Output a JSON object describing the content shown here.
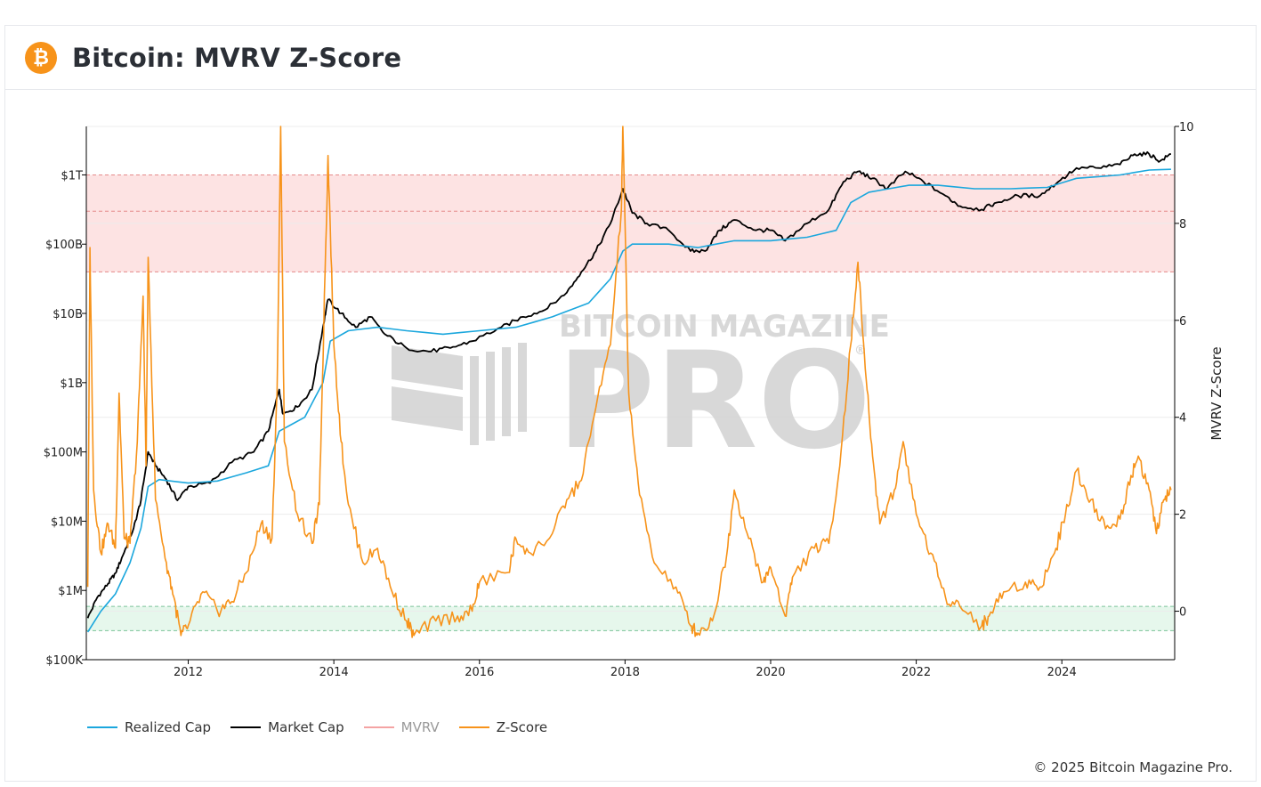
{
  "header": {
    "title": "Bitcoin: MVRV Z-Score",
    "logo_glyph": "₿",
    "logo_color": "#f7931a"
  },
  "watermark": {
    "line1": "BITCOIN MAGAZINE",
    "line2": "PRO",
    "registered": "®"
  },
  "footer": {
    "copyright": "© 2025 Bitcoin Magazine Pro."
  },
  "legend": [
    {
      "label": "Realized Cap",
      "color": "#1ba7dd",
      "active": true
    },
    {
      "label": "Market Cap",
      "color": "#000000",
      "active": true
    },
    {
      "label": "MVRV",
      "color": "#f4a3a3",
      "active": false
    },
    {
      "label": "Z-Score",
      "color": "#f7931a",
      "active": true
    }
  ],
  "chart_data": {
    "type": "line",
    "x_ticks": [
      "2012",
      "2014",
      "2016",
      "2018",
      "2020",
      "2022",
      "2024"
    ],
    "x_range": [
      2010.6,
      2025.55
    ],
    "left_axis": {
      "scale": "log",
      "ticks": [
        "$100K",
        "$1M",
        "$10M",
        "$100M",
        "$1B",
        "$10B",
        "$100B",
        "$1T"
      ],
      "range_log10": [
        5,
        12.7
      ]
    },
    "right_axis": {
      "label": "MVRV Z-Score",
      "ticks": [
        "0",
        "2",
        "4",
        "6",
        "8",
        "10"
      ],
      "range": [
        -1,
        10
      ]
    },
    "zones": [
      {
        "name": "overvalued",
        "from": 7,
        "to": 9,
        "color": "#fde3e3",
        "mid_line": 8.25
      },
      {
        "name": "undervalued",
        "from": -0.4,
        "to": 0.1,
        "color": "#e6f7ec"
      }
    ],
    "series": [
      {
        "name": "Market Cap",
        "color": "#000000",
        "axis": "left",
        "points": [
          [
            2010.62,
            5.6
          ],
          [
            2010.75,
            5.9
          ],
          [
            2010.9,
            6.1
          ],
          [
            2011.0,
            6.25
          ],
          [
            2011.1,
            6.5
          ],
          [
            2011.25,
            6.9
          ],
          [
            2011.35,
            7.3
          ],
          [
            2011.45,
            8.0
          ],
          [
            2011.55,
            7.8
          ],
          [
            2011.7,
            7.6
          ],
          [
            2011.85,
            7.3
          ],
          [
            2012.0,
            7.5
          ],
          [
            2012.3,
            7.55
          ],
          [
            2012.6,
            7.85
          ],
          [
            2012.9,
            8.0
          ],
          [
            2013.1,
            8.3
          ],
          [
            2013.25,
            8.9
          ],
          [
            2013.3,
            8.55
          ],
          [
            2013.5,
            8.65
          ],
          [
            2013.7,
            8.9
          ],
          [
            2013.85,
            9.8
          ],
          [
            2013.92,
            10.2
          ],
          [
            2014.1,
            10.0
          ],
          [
            2014.3,
            9.8
          ],
          [
            2014.5,
            9.95
          ],
          [
            2014.7,
            9.7
          ],
          [
            2015.0,
            9.5
          ],
          [
            2015.3,
            9.45
          ],
          [
            2015.6,
            9.5
          ],
          [
            2015.9,
            9.6
          ],
          [
            2016.3,
            9.8
          ],
          [
            2016.6,
            9.95
          ],
          [
            2016.9,
            10.05
          ],
          [
            2017.2,
            10.3
          ],
          [
            2017.4,
            10.6
          ],
          [
            2017.6,
            10.9
          ],
          [
            2017.8,
            11.3
          ],
          [
            2017.97,
            11.8
          ],
          [
            2018.1,
            11.45
          ],
          [
            2018.3,
            11.3
          ],
          [
            2018.6,
            11.2
          ],
          [
            2018.9,
            10.9
          ],
          [
            2019.1,
            10.9
          ],
          [
            2019.3,
            11.2
          ],
          [
            2019.5,
            11.35
          ],
          [
            2019.8,
            11.2
          ],
          [
            2020.0,
            11.2
          ],
          [
            2020.2,
            11.05
          ],
          [
            2020.5,
            11.3
          ],
          [
            2020.8,
            11.5
          ],
          [
            2021.0,
            11.9
          ],
          [
            2021.2,
            12.05
          ],
          [
            2021.4,
            11.95
          ],
          [
            2021.6,
            11.8
          ],
          [
            2021.85,
            12.05
          ],
          [
            2022.1,
            11.9
          ],
          [
            2022.4,
            11.7
          ],
          [
            2022.6,
            11.55
          ],
          [
            2022.9,
            11.5
          ],
          [
            2023.1,
            11.6
          ],
          [
            2023.4,
            11.7
          ],
          [
            2023.7,
            11.7
          ],
          [
            2023.95,
            11.9
          ],
          [
            2024.2,
            12.1
          ],
          [
            2024.5,
            12.1
          ],
          [
            2024.8,
            12.15
          ],
          [
            2025.0,
            12.3
          ],
          [
            2025.2,
            12.3
          ],
          [
            2025.35,
            12.2
          ],
          [
            2025.5,
            12.3
          ]
        ]
      },
      {
        "name": "Realized Cap",
        "color": "#1ba7dd",
        "axis": "left",
        "points": [
          [
            2010.62,
            5.4
          ],
          [
            2010.8,
            5.7
          ],
          [
            2011.0,
            5.95
          ],
          [
            2011.2,
            6.4
          ],
          [
            2011.35,
            6.9
          ],
          [
            2011.45,
            7.5
          ],
          [
            2011.6,
            7.6
          ],
          [
            2012.0,
            7.55
          ],
          [
            2012.4,
            7.58
          ],
          [
            2012.8,
            7.7
          ],
          [
            2013.1,
            7.8
          ],
          [
            2013.25,
            8.3
          ],
          [
            2013.6,
            8.5
          ],
          [
            2013.85,
            9.0
          ],
          [
            2013.95,
            9.6
          ],
          [
            2014.2,
            9.75
          ],
          [
            2014.6,
            9.8
          ],
          [
            2015.0,
            9.75
          ],
          [
            2015.5,
            9.7
          ],
          [
            2016.0,
            9.75
          ],
          [
            2016.5,
            9.8
          ],
          [
            2017.0,
            9.95
          ],
          [
            2017.5,
            10.15
          ],
          [
            2017.8,
            10.5
          ],
          [
            2017.97,
            10.9
          ],
          [
            2018.1,
            11.0
          ],
          [
            2018.6,
            11.0
          ],
          [
            2019.0,
            10.95
          ],
          [
            2019.5,
            11.05
          ],
          [
            2020.0,
            11.05
          ],
          [
            2020.5,
            11.1
          ],
          [
            2020.9,
            11.2
          ],
          [
            2021.1,
            11.6
          ],
          [
            2021.35,
            11.75
          ],
          [
            2021.9,
            11.85
          ],
          [
            2022.3,
            11.85
          ],
          [
            2022.8,
            11.8
          ],
          [
            2023.3,
            11.8
          ],
          [
            2023.8,
            11.82
          ],
          [
            2024.2,
            11.95
          ],
          [
            2024.8,
            12.0
          ],
          [
            2025.2,
            12.07
          ],
          [
            2025.5,
            12.08
          ]
        ]
      },
      {
        "name": "Z-Score",
        "color": "#f7931a",
        "axis": "right",
        "points": [
          [
            2010.62,
            0.5
          ],
          [
            2010.65,
            7.5
          ],
          [
            2010.7,
            2.5
          ],
          [
            2010.8,
            1.2
          ],
          [
            2010.9,
            1.8
          ],
          [
            2011.0,
            1.3
          ],
          [
            2011.05,
            4.5
          ],
          [
            2011.12,
            1.5
          ],
          [
            2011.2,
            1.4
          ],
          [
            2011.3,
            3.5
          ],
          [
            2011.38,
            6.5
          ],
          [
            2011.42,
            3.0
          ],
          [
            2011.45,
            7.3
          ],
          [
            2011.55,
            2.3
          ],
          [
            2011.7,
            1.0
          ],
          [
            2011.8,
            0.3
          ],
          [
            2011.9,
            -0.5
          ],
          [
            2012.0,
            -0.3
          ],
          [
            2012.2,
            0.4
          ],
          [
            2012.4,
            0.0
          ],
          [
            2012.6,
            0.2
          ],
          [
            2012.8,
            0.8
          ],
          [
            2013.0,
            1.8
          ],
          [
            2013.15,
            1.5
          ],
          [
            2013.22,
            4.5
          ],
          [
            2013.27,
            10.0
          ],
          [
            2013.32,
            3.5
          ],
          [
            2013.5,
            2.0
          ],
          [
            2013.7,
            1.4
          ],
          [
            2013.8,
            2.2
          ],
          [
            2013.88,
            7.0
          ],
          [
            2013.92,
            9.4
          ],
          [
            2014.0,
            5.5
          ],
          [
            2014.1,
            3.5
          ],
          [
            2014.2,
            2.2
          ],
          [
            2014.4,
            1.0
          ],
          [
            2014.6,
            1.3
          ],
          [
            2014.8,
            0.4
          ],
          [
            2015.0,
            -0.2
          ],
          [
            2015.1,
            -0.5
          ],
          [
            2015.4,
            -0.2
          ],
          [
            2015.7,
            -0.1
          ],
          [
            2015.9,
            0.0
          ],
          [
            2016.0,
            0.6
          ],
          [
            2016.4,
            0.8
          ],
          [
            2016.5,
            1.5
          ],
          [
            2016.7,
            1.2
          ],
          [
            2017.0,
            1.6
          ],
          [
            2017.2,
            2.3
          ],
          [
            2017.4,
            2.7
          ],
          [
            2017.6,
            4.2
          ],
          [
            2017.8,
            5.5
          ],
          [
            2017.95,
            8.3
          ],
          [
            2017.97,
            10.0
          ],
          [
            2018.05,
            4.5
          ],
          [
            2018.2,
            2.4
          ],
          [
            2018.4,
            1.0
          ],
          [
            2018.7,
            0.5
          ],
          [
            2018.9,
            -0.3
          ],
          [
            2019.0,
            -0.45
          ],
          [
            2019.2,
            -0.2
          ],
          [
            2019.4,
            1.2
          ],
          [
            2019.5,
            2.5
          ],
          [
            2019.7,
            1.5
          ],
          [
            2019.9,
            0.6
          ],
          [
            2020.0,
            0.9
          ],
          [
            2020.2,
            -0.1
          ],
          [
            2020.3,
            0.7
          ],
          [
            2020.6,
            1.3
          ],
          [
            2020.8,
            1.4
          ],
          [
            2020.95,
            3.0
          ],
          [
            2021.1,
            5.5
          ],
          [
            2021.2,
            7.2
          ],
          [
            2021.3,
            5.0
          ],
          [
            2021.4,
            3.2
          ],
          [
            2021.5,
            1.8
          ],
          [
            2021.7,
            2.5
          ],
          [
            2021.82,
            3.5
          ],
          [
            2022.0,
            2.0
          ],
          [
            2022.2,
            1.2
          ],
          [
            2022.4,
            0.3
          ],
          [
            2022.6,
            0.1
          ],
          [
            2022.9,
            -0.3
          ],
          [
            2023.0,
            -0.1
          ],
          [
            2023.2,
            0.4
          ],
          [
            2023.5,
            0.6
          ],
          [
            2023.7,
            0.5
          ],
          [
            2023.9,
            1.2
          ],
          [
            2024.05,
            2.0
          ],
          [
            2024.2,
            2.9
          ],
          [
            2024.4,
            2.3
          ],
          [
            2024.6,
            1.7
          ],
          [
            2024.8,
            1.9
          ],
          [
            2024.95,
            2.8
          ],
          [
            2025.05,
            3.2
          ],
          [
            2025.2,
            2.5
          ],
          [
            2025.3,
            1.6
          ],
          [
            2025.4,
            2.3
          ],
          [
            2025.5,
            2.5
          ]
        ]
      }
    ]
  }
}
